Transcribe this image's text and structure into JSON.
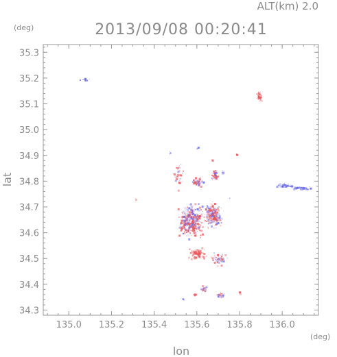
{
  "chart_data": {
    "type": "scatter",
    "title": "2013/09/08 00:20:41",
    "altitude_label": "ALT(km) 2.0",
    "xlabel": "lon",
    "ylabel": "lat",
    "x_unit": "(deg)",
    "y_unit": "(deg)",
    "xlim": [
      134.88,
      136.17
    ],
    "ylim": [
      34.28,
      35.33
    ],
    "xticks": [
      135.0,
      135.2,
      135.4,
      135.6,
      135.8,
      136.0
    ],
    "xtick_labels": [
      "135.0",
      "135.2",
      "135.4",
      "135.6",
      "135.8",
      "136.0"
    ],
    "yticks": [
      34.3,
      34.4,
      34.5,
      34.6,
      34.7,
      34.8,
      34.9,
      35.0,
      35.1,
      35.2,
      35.3
    ],
    "ytick_labels": [
      "34.3",
      "34.4",
      "34.5",
      "34.6",
      "34.7",
      "34.8",
      "34.9",
      "35.0",
      "35.1",
      "35.2",
      "35.3"
    ],
    "grid": false,
    "colors": {
      "positive": "#e8555a",
      "negative": "#6a6ae8",
      "axis": "#9a9a9a"
    },
    "clusters": [
      {
        "lon": 135.07,
        "lat": 35.195,
        "slon": 0.02,
        "slat": 0.006,
        "n": 14,
        "color": "negative"
      },
      {
        "lon": 135.89,
        "lat": 35.13,
        "slon": 0.01,
        "slat": 0.015,
        "n": 40,
        "color": "positive"
      },
      {
        "lon": 136.01,
        "lat": 34.785,
        "slon": 0.025,
        "slat": 0.006,
        "n": 40,
        "color": "negative"
      },
      {
        "lon": 136.09,
        "lat": 34.775,
        "slon": 0.035,
        "slat": 0.005,
        "n": 50,
        "color": "negative"
      },
      {
        "lon": 135.51,
        "lat": 34.82,
        "slon": 0.018,
        "slat": 0.045,
        "n": 40,
        "color": "mixed"
      },
      {
        "lon": 135.47,
        "lat": 34.91,
        "slon": 0.005,
        "slat": 0.005,
        "n": 4,
        "color": "negative"
      },
      {
        "lon": 135.785,
        "lat": 34.905,
        "slon": 0.005,
        "slat": 0.005,
        "n": 4,
        "color": "positive"
      },
      {
        "lon": 135.67,
        "lat": 34.885,
        "slon": 0.005,
        "slat": 0.004,
        "n": 4,
        "color": "positive"
      },
      {
        "lon": 135.6,
        "lat": 34.93,
        "slon": 0.004,
        "slat": 0.004,
        "n": 3,
        "color": "negative"
      },
      {
        "lon": 135.6,
        "lat": 34.8,
        "slon": 0.02,
        "slat": 0.015,
        "n": 50,
        "color": "mixed"
      },
      {
        "lon": 135.68,
        "lat": 34.82,
        "slon": 0.015,
        "slat": 0.02,
        "n": 40,
        "color": "mixed"
      },
      {
        "lon": 135.72,
        "lat": 34.835,
        "slon": 0.006,
        "slat": 0.005,
        "n": 8,
        "color": "negative"
      },
      {
        "lon": 135.57,
        "lat": 34.65,
        "slon": 0.045,
        "slat": 0.05,
        "n": 420,
        "color": "mixed"
      },
      {
        "lon": 135.67,
        "lat": 34.67,
        "slon": 0.035,
        "slat": 0.04,
        "n": 260,
        "color": "mixed"
      },
      {
        "lon": 135.6,
        "lat": 34.52,
        "slon": 0.035,
        "slat": 0.018,
        "n": 90,
        "color": "positive"
      },
      {
        "lon": 135.7,
        "lat": 34.5,
        "slon": 0.03,
        "slat": 0.018,
        "n": 60,
        "color": "mixed"
      },
      {
        "lon": 135.63,
        "lat": 34.385,
        "slon": 0.012,
        "slat": 0.012,
        "n": 30,
        "color": "mixed"
      },
      {
        "lon": 135.59,
        "lat": 34.36,
        "slon": 0.012,
        "slat": 0.006,
        "n": 15,
        "color": "positive"
      },
      {
        "lon": 135.71,
        "lat": 34.36,
        "slon": 0.02,
        "slat": 0.008,
        "n": 25,
        "color": "mixed"
      },
      {
        "lon": 135.53,
        "lat": 34.345,
        "slon": 0.008,
        "slat": 0.004,
        "n": 5,
        "color": "negative"
      },
      {
        "lon": 135.8,
        "lat": 34.37,
        "slon": 0.005,
        "slat": 0.004,
        "n": 4,
        "color": "positive"
      },
      {
        "lon": 135.31,
        "lat": 34.735,
        "slon": 0.004,
        "slat": 0.004,
        "n": 2,
        "color": "positive"
      },
      {
        "lon": 135.75,
        "lat": 34.735,
        "slon": 0.005,
        "slat": 0.004,
        "n": 3,
        "color": "negative"
      }
    ]
  }
}
